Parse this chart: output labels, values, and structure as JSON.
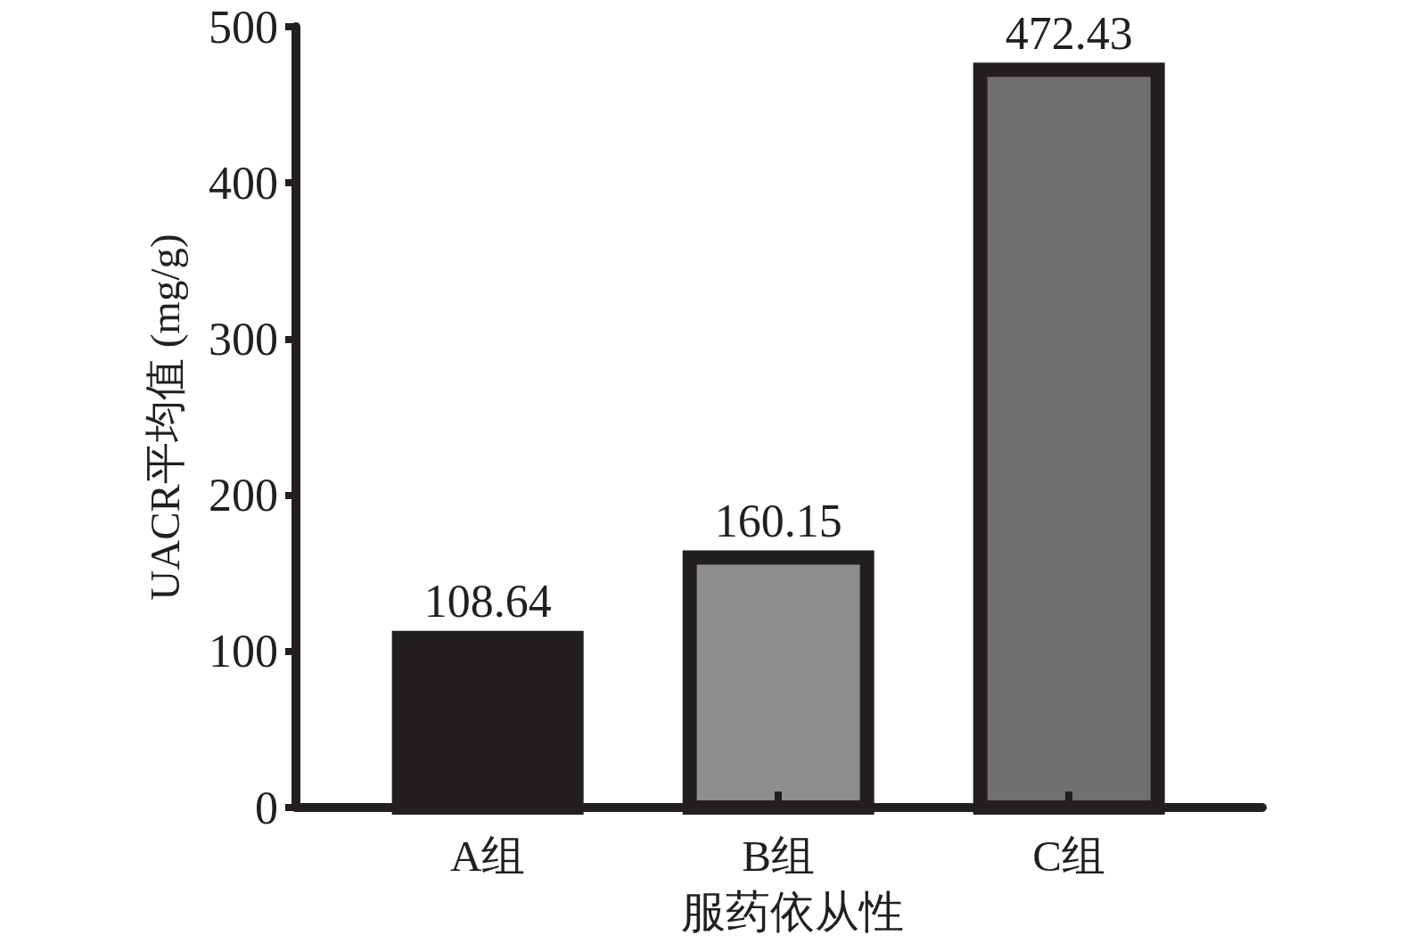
{
  "chart_data": {
    "type": "bar",
    "xlabel": "服药依从性",
    "ylabel": "UACR平均值 (mg/g)",
    "categories": [
      "A组",
      "B组",
      "C组"
    ],
    "values": [
      108.64,
      160.15,
      472.43
    ],
    "colors": [
      "#231f20",
      "#8e8e8e",
      "#717071"
    ],
    "ylim": [
      0,
      500
    ],
    "yticks": [
      0,
      100,
      200,
      300,
      400,
      500
    ],
    "data_labels": true,
    "grid": false
  }
}
